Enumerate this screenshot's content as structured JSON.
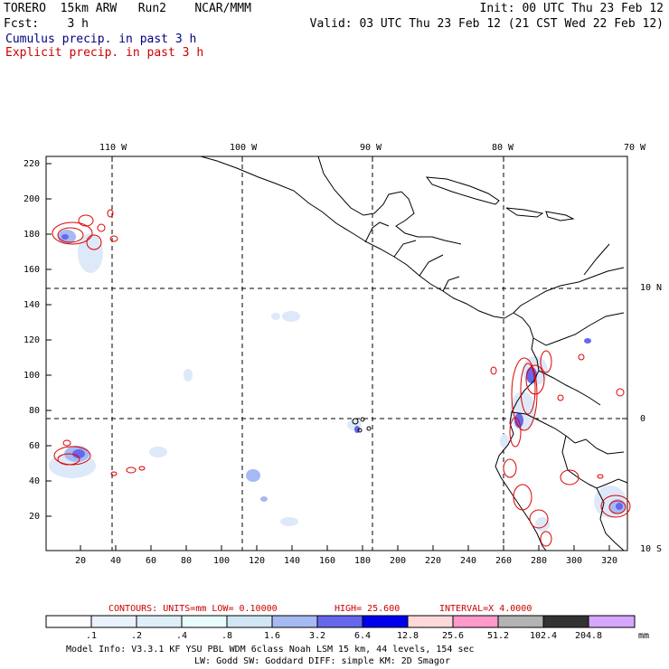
{
  "header": {
    "line1_left": "TORERO  15km ARW   Run2    NCAR/MMM",
    "line1_right": "Init: 00 UTC Thu 23 Feb 12",
    "line2_left": "Fcst:    3 h",
    "line2_right": "Valid: 03 UTC Thu 23 Feb 12 (21 CST Wed 22 Feb 12)",
    "field1": "Cumulus precip. in past 3 h",
    "field2": "Explicit precip. in past 3 h"
  },
  "map": {
    "lon_labels": [
      "110 W",
      "100 W",
      "90 W",
      "80 W",
      "70 W"
    ],
    "lat_labels": [
      "10 N",
      "0",
      "10 S"
    ],
    "y_ticks": [
      "220",
      "200",
      "180",
      "160",
      "140",
      "120",
      "100",
      "80",
      "60",
      "40",
      "20"
    ],
    "x_ticks": [
      "20",
      "40",
      "60",
      "80",
      "100",
      "120",
      "140",
      "160",
      "180",
      "200",
      "220",
      "240",
      "260",
      "280",
      "300",
      "320"
    ]
  },
  "contour_info": {
    "units": "CONTOURS:  UNITS=mm  LOW= 0.10000",
    "high": "HIGH=  25.600",
    "interval": "INTERVAL=X  4.0000"
  },
  "colorbar": {
    "labels": [
      ".1",
      ".2",
      ".4",
      ".8",
      "1.6",
      "3.2",
      "6.4",
      "12.8",
      "25.6",
      "51.2",
      "102.4",
      "204.8"
    ],
    "unit": "mm",
    "colors": [
      "#ffffff",
      "#eaf2fb",
      "#dfeffa",
      "#e9fcfc",
      "#d1e6f5",
      "#a7b9f2",
      "#6767ee",
      "#0000ee",
      "#ffd9d9",
      "#ff9acb",
      "#b3b3b3",
      "#333333",
      "#d7a6ff"
    ]
  },
  "footer": {
    "line1": "Model Info: V3.3.1    KF     YSU PBL  WDM 6class  Noah LSM  15 km,    44 levels,   154 sec",
    "line2": "LW: Godd SW: Goddard DIFF: simple KM: 2D Smagor"
  }
}
